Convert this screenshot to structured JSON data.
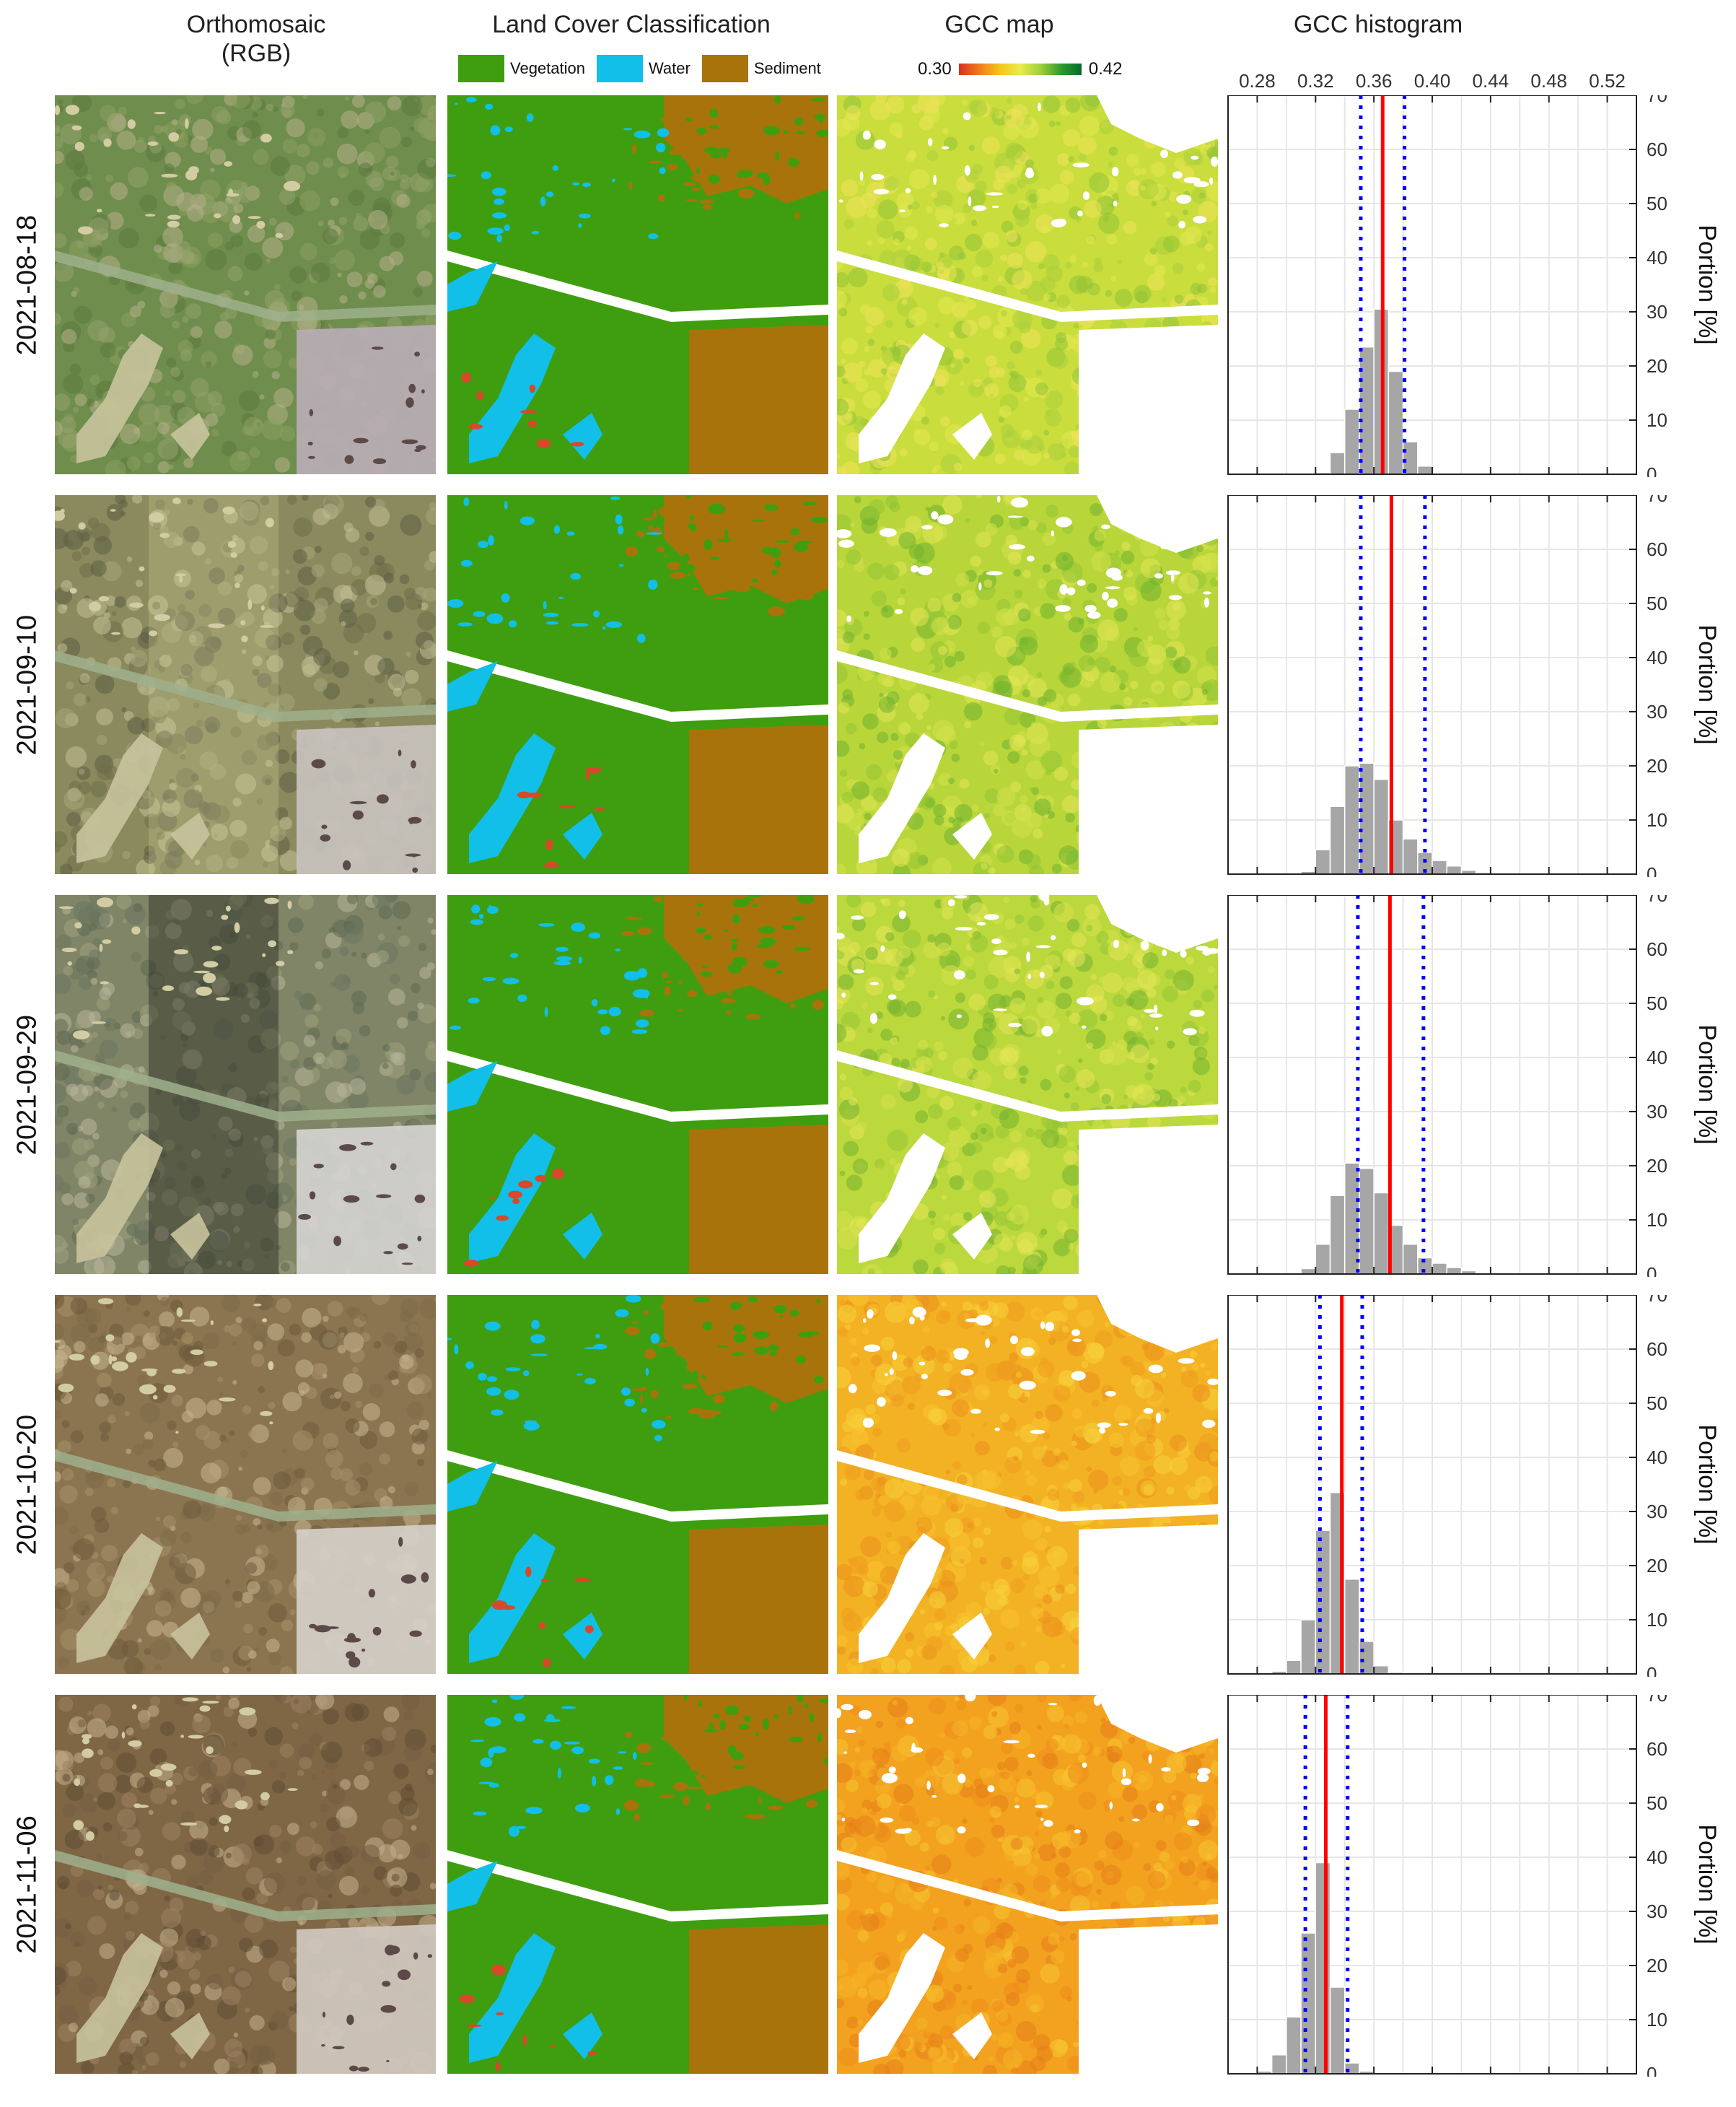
{
  "columns": {
    "rgb_line1": "Orthomosaic",
    "rgb_line2": "(RGB)",
    "class": "Land Cover Classification",
    "gcc_map": "GCC map",
    "gcc_hist": "GCC histogram"
  },
  "legend": {
    "vegetation": "Vegetation",
    "water": "Water",
    "sediment": "Sediment",
    "colors": {
      "vegetation": "#3f9e0f",
      "water": "#12bfe8",
      "sediment": "#a8730a"
    }
  },
  "colorbar": {
    "min": "0.30",
    "max": "0.42"
  },
  "rows": [
    {
      "date": "2021-08-18"
    },
    {
      "date": "2021-09-10"
    },
    {
      "date": "2021-09-29"
    },
    {
      "date": "2021-10-20"
    },
    {
      "date": "2021-11-06"
    }
  ],
  "chart_data": {
    "type": "bar",
    "xlim": [
      0.26,
      0.54
    ],
    "x_ticks": [
      "0.28",
      "0.32",
      "0.36",
      "0.40",
      "0.44",
      "0.48",
      "0.52"
    ],
    "x_tick_values": [
      0.28,
      0.32,
      0.36,
      0.4,
      0.44,
      0.48,
      0.52
    ],
    "ylim": [
      0,
      70
    ],
    "y_ticks": [
      "0",
      "10",
      "20",
      "30",
      "40",
      "50",
      "60",
      "70"
    ],
    "ylabel": "Portion [%]",
    "bin_width": 0.01,
    "line_colors": {
      "mean": "#ff0000",
      "std": "#0000ff",
      "bars": "#a6a6a6"
    },
    "panels": [
      {
        "date": "2021-08-18",
        "bin_centers": [
          0.325,
          0.335,
          0.345,
          0.355,
          0.365,
          0.375,
          0.385,
          0.395
        ],
        "values": [
          0.3,
          4,
          12,
          23.5,
          30.5,
          19,
          6,
          1.5
        ],
        "mean": 0.366,
        "std_low": 0.351,
        "std_high": 0.381
      },
      {
        "date": "2021-09-10",
        "bin_centers": [
          0.315,
          0.325,
          0.335,
          0.345,
          0.355,
          0.365,
          0.375,
          0.385,
          0.395,
          0.405,
          0.415,
          0.425,
          0.435
        ],
        "values": [
          0.5,
          4.5,
          12.5,
          20,
          20.5,
          17.5,
          10,
          6.5,
          4,
          2.5,
          1.5,
          0.7,
          0.3
        ],
        "mean": 0.372,
        "std_low": 0.351,
        "std_high": 0.395
      },
      {
        "date": "2021-09-29",
        "bin_centers": [
          0.315,
          0.325,
          0.335,
          0.345,
          0.355,
          0.365,
          0.375,
          0.385,
          0.395,
          0.405,
          0.415,
          0.425,
          0.435
        ],
        "values": [
          1,
          5.5,
          14.5,
          20.5,
          19.5,
          15,
          9,
          5.5,
          3,
          2,
          1.2,
          0.6,
          0.2
        ],
        "mean": 0.371,
        "std_low": 0.349,
        "std_high": 0.394
      },
      {
        "date": "2021-10-20",
        "bin_centers": [
          0.295,
          0.305,
          0.315,
          0.325,
          0.335,
          0.345,
          0.355,
          0.365,
          0.375
        ],
        "values": [
          0.5,
          2.5,
          10,
          26.5,
          33.5,
          17.5,
          6,
          1.5,
          0.3
        ],
        "mean": 0.338,
        "std_low": 0.323,
        "std_high": 0.352
      },
      {
        "date": "2021-11-06",
        "bin_centers": [
          0.285,
          0.295,
          0.305,
          0.315,
          0.325,
          0.335,
          0.345,
          0.355
        ],
        "values": [
          0.5,
          3.5,
          10.5,
          26,
          39,
          16,
          2,
          0.5
        ],
        "mean": 0.327,
        "std_low": 0.313,
        "std_high": 0.342
      }
    ]
  }
}
